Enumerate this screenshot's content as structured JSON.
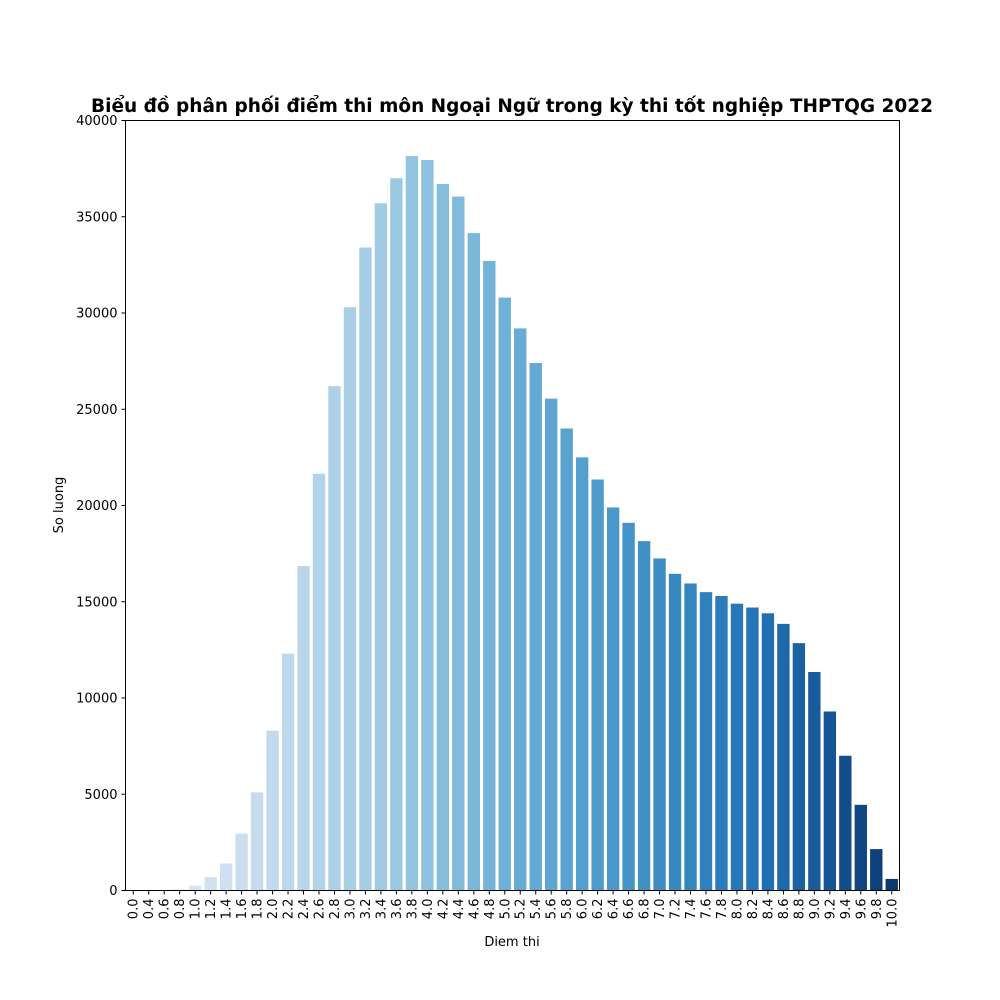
{
  "chart_data": {
    "type": "bar",
    "title": "Biểu đồ phân phối điểm thi môn Ngoại Ngữ trong kỳ thi tốt nghiệp THPTQG 2022",
    "xlabel": "Diem thi",
    "ylabel": "So luong",
    "ylim": [
      0,
      40000
    ],
    "yticks": [
      "0",
      "5000",
      "10000",
      "15000",
      "20000",
      "25000",
      "30000",
      "35000",
      "40000"
    ],
    "grid": false,
    "legend": "none",
    "categories": [
      "0.0",
      "0.4",
      "0.6",
      "0.8",
      "1.0",
      "1.2",
      "1.4",
      "1.6",
      "1.8",
      "2.0",
      "2.2",
      "2.4",
      "2.6",
      "2.8",
      "3.0",
      "3.2",
      "3.4",
      "3.6",
      "3.8",
      "4.0",
      "4.2",
      "4.4",
      "4.6",
      "4.8",
      "5.0",
      "5.2",
      "5.4",
      "5.6",
      "5.8",
      "6.0",
      "6.2",
      "6.4",
      "6.6",
      "6.8",
      "7.0",
      "7.2",
      "7.4",
      "7.6",
      "7.8",
      "8.0",
      "8.2",
      "8.4",
      "8.6",
      "8.8",
      "9.0",
      "9.2",
      "9.4",
      "9.6",
      "9.8",
      "10.0"
    ],
    "values": [
      10,
      10,
      20,
      60,
      250,
      700,
      1400,
      2950,
      5100,
      8300,
      12300,
      16850,
      21650,
      26200,
      30300,
      33400,
      35700,
      37000,
      38150,
      37950,
      36700,
      36050,
      34150,
      32700,
      30800,
      29200,
      27400,
      25550,
      24000,
      22500,
      21350,
      19900,
      19100,
      18150,
      17250,
      16450,
      15950,
      15500,
      15300,
      14900,
      14700,
      14400,
      13850,
      12850,
      11350,
      9300,
      7000,
      4450,
      2150,
      600
    ],
    "colormap": "Blues",
    "colors": {
      "light": "#e3eef8",
      "dark": "#0b3a73",
      "axis": "#000000"
    }
  }
}
